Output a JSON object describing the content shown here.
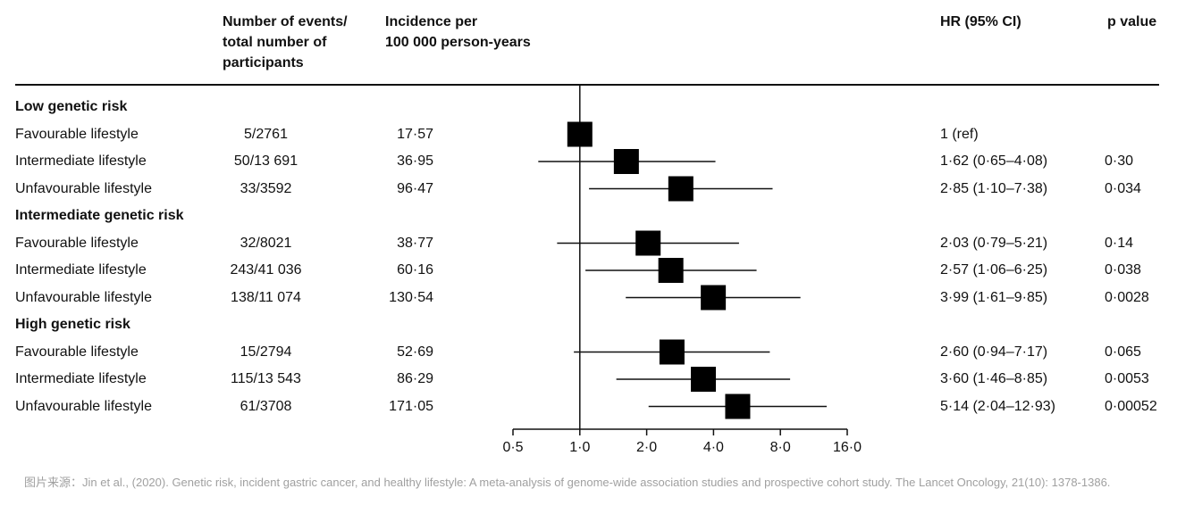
{
  "header": {
    "events": "Number of events/\ntotal number of\nparticipants",
    "incidence": "Incidence per\n100 000 person-years",
    "hr": "HR (95% CI)",
    "p": "p value"
  },
  "rows": [
    {
      "type": "group",
      "label": "Low genetic risk"
    },
    {
      "type": "data",
      "label": "Favourable lifestyle",
      "events": "5/2761",
      "incidence": "17·57",
      "hr_text": "1 (ref)",
      "p": ""
    },
    {
      "type": "data",
      "label": "Intermediate lifestyle",
      "events": "50/13 691",
      "incidence": "36·95",
      "hr_text": "1·62 (0·65–4·08)",
      "p": "0·30"
    },
    {
      "type": "data",
      "label": "Unfavourable lifestyle",
      "events": "33/3592",
      "incidence": "96·47",
      "hr_text": "2·85 (1·10–7·38)",
      "p": "0·034"
    },
    {
      "type": "group",
      "label": "Intermediate genetic risk"
    },
    {
      "type": "data",
      "label": "Favourable lifestyle",
      "events": "32/8021",
      "incidence": "38·77",
      "hr_text": "2·03 (0·79–5·21)",
      "p": "0·14"
    },
    {
      "type": "data",
      "label": "Intermediate lifestyle",
      "events": "243/41 036",
      "incidence": "60·16",
      "hr_text": "2·57 (1·06–6·25)",
      "p": "0·038"
    },
    {
      "type": "data",
      "label": "Unfavourable lifestyle",
      "events": "138/11 074",
      "incidence": "130·54",
      "hr_text": "3·99 (1·61–9·85)",
      "p": "0·0028"
    },
    {
      "type": "group",
      "label": "High genetic risk"
    },
    {
      "type": "data",
      "label": "Favourable lifestyle",
      "events": "15/2794",
      "incidence": "52·69",
      "hr_text": "2·60 (0·94–7·17)",
      "p": "0·065"
    },
    {
      "type": "data",
      "label": "Intermediate lifestyle",
      "events": "115/13 543",
      "incidence": "86·29",
      "hr_text": "3·60 (1·46–8·85)",
      "p": "0·0053"
    },
    {
      "type": "data",
      "label": "Unfavourable lifestyle",
      "events": "61/3708",
      "incidence": "171·05",
      "hr_text": "5·14 (2·04–12·93)",
      "p": "0·00052"
    }
  ],
  "source_note": "图片来源：Jin et al., (2020). Genetic risk, incident gastric cancer, and healthy lifestyle: A meta-analysis of genome-wide association studies and prospective cohort study. The Lancet Oncology, 21(10): 1378-1386.",
  "chart_data": {
    "type": "forest",
    "x_scale": "log2",
    "xlim": [
      0.5,
      16.0
    ],
    "x_ticks": [
      0.5,
      1.0,
      2.0,
      4.0,
      8.0,
      16.0
    ],
    "x_tick_labels": [
      "0·5",
      "1·0",
      "2·0",
      "4·0",
      "8·0",
      "16·0"
    ],
    "reference_line": 1.0,
    "marker_color": "#000000",
    "points": [
      {
        "group": "Low genetic risk",
        "label": "Favourable lifestyle",
        "hr": 1.0,
        "lo": null,
        "hi": null
      },
      {
        "group": "Low genetic risk",
        "label": "Intermediate lifestyle",
        "hr": 1.62,
        "lo": 0.65,
        "hi": 4.08
      },
      {
        "group": "Low genetic risk",
        "label": "Unfavourable lifestyle",
        "hr": 2.85,
        "lo": 1.1,
        "hi": 7.38
      },
      {
        "group": "Intermediate genetic risk",
        "label": "Favourable lifestyle",
        "hr": 2.03,
        "lo": 0.79,
        "hi": 5.21
      },
      {
        "group": "Intermediate genetic risk",
        "label": "Intermediate lifestyle",
        "hr": 2.57,
        "lo": 1.06,
        "hi": 6.25
      },
      {
        "group": "Intermediate genetic risk",
        "label": "Unfavourable lifestyle",
        "hr": 3.99,
        "lo": 1.61,
        "hi": 9.85
      },
      {
        "group": "High genetic risk",
        "label": "Favourable lifestyle",
        "hr": 2.6,
        "lo": 0.94,
        "hi": 7.17
      },
      {
        "group": "High genetic risk",
        "label": "Intermediate lifestyle",
        "hr": 3.6,
        "lo": 1.46,
        "hi": 8.85
      },
      {
        "group": "High genetic risk",
        "label": "Unfavourable lifestyle",
        "hr": 5.14,
        "lo": 2.04,
        "hi": 12.93
      }
    ]
  }
}
